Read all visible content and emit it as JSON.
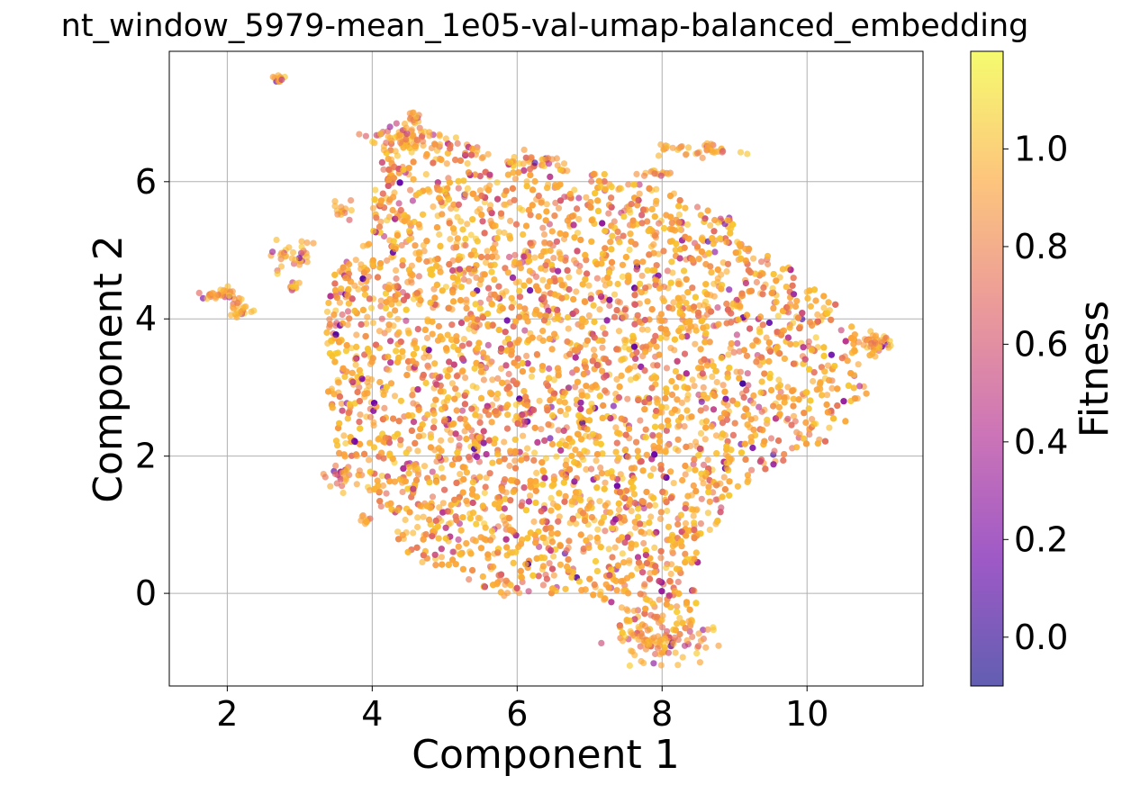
{
  "chart_data": {
    "type": "scatter",
    "title": "nt_window_5979-mean_1e05-val-umap-balanced_embedding",
    "xlabel": "Component 1",
    "ylabel": "Component 2",
    "xlim": [
      1.2,
      11.6
    ],
    "ylim": [
      -1.35,
      7.9
    ],
    "x_ticks": [
      2,
      4,
      6,
      8,
      10
    ],
    "y_ticks": [
      0,
      2,
      4,
      6
    ],
    "x_tick_labels": [
      "2",
      "4",
      "6",
      "8",
      "10"
    ],
    "y_tick_labels": [
      "0",
      "2",
      "4",
      "6"
    ],
    "grid": true,
    "colormap": "plasma",
    "marker_alpha": 0.65,
    "colorbar": {
      "label": "Fitness",
      "range": [
        -0.1,
        1.2
      ],
      "ticks": [
        0.0,
        0.2,
        0.4,
        0.6,
        0.8,
        1.0
      ],
      "tick_labels": [
        "0.0",
        "0.2",
        "0.4",
        "0.6",
        "0.8",
        "1.0"
      ],
      "stops": [
        "#0d0887",
        "#6a00a8",
        "#b12a90",
        "#e16462",
        "#fca636",
        "#f0f921"
      ]
    },
    "main_cloud": {
      "note_point_count": 6000,
      "boundary": [
        [
          3.3,
          3.2
        ],
        [
          3.4,
          4.6
        ],
        [
          3.9,
          5.1
        ],
        [
          4.1,
          6.2
        ],
        [
          4.3,
          6.75
        ],
        [
          5.3,
          6.55
        ],
        [
          6.2,
          6.25
        ],
        [
          7.3,
          6.1
        ],
        [
          8.0,
          5.9
        ],
        [
          8.9,
          5.5
        ],
        [
          9.3,
          5.1
        ],
        [
          10.0,
          4.6
        ],
        [
          10.6,
          4.0
        ],
        [
          11.1,
          3.7
        ],
        [
          10.9,
          3.0
        ],
        [
          10.3,
          2.2
        ],
        [
          9.4,
          1.8
        ],
        [
          9.0,
          1.4
        ],
        [
          8.5,
          0.6
        ],
        [
          8.5,
          0.0
        ],
        [
          8.4,
          -0.6
        ],
        [
          8.0,
          -0.9
        ],
        [
          7.3,
          -0.5
        ],
        [
          7.0,
          0.0
        ],
        [
          6.3,
          0.0
        ],
        [
          5.7,
          -0.1
        ],
        [
          5.2,
          0.3
        ],
        [
          4.5,
          0.5
        ],
        [
          3.9,
          1.5
        ],
        [
          3.5,
          1.8
        ],
        [
          3.5,
          2.5
        ],
        [
          3.3,
          3.2
        ]
      ]
    },
    "clusters": [
      {
        "x": 2.72,
        "y": 7.5,
        "sx": 0.03,
        "sy": 0.03,
        "n": 14
      },
      {
        "x": 1.9,
        "y": 4.35,
        "sx": 0.12,
        "sy": 0.05,
        "n": 30
      },
      {
        "x": 2.2,
        "y": 4.12,
        "sx": 0.08,
        "sy": 0.07,
        "n": 25
      },
      {
        "x": 2.9,
        "y": 4.9,
        "sx": 0.15,
        "sy": 0.12,
        "n": 35
      },
      {
        "x": 2.9,
        "y": 4.45,
        "sx": 0.05,
        "sy": 0.05,
        "n": 10
      },
      {
        "x": 3.9,
        "y": 1.08,
        "sx": 0.03,
        "sy": 0.04,
        "n": 10
      },
      {
        "x": 4.5,
        "y": 6.65,
        "sx": 0.25,
        "sy": 0.08,
        "n": 60
      },
      {
        "x": 4.55,
        "y": 6.95,
        "sx": 0.06,
        "sy": 0.06,
        "n": 15
      },
      {
        "x": 6.2,
        "y": 6.3,
        "sx": 0.25,
        "sy": 0.05,
        "n": 30
      },
      {
        "x": 8.5,
        "y": 6.45,
        "sx": 0.3,
        "sy": 0.07,
        "n": 40
      },
      {
        "x": 7.9,
        "y": 6.12,
        "sx": 0.1,
        "sy": 0.03,
        "n": 15
      },
      {
        "x": 3.6,
        "y": 5.6,
        "sx": 0.1,
        "sy": 0.1,
        "n": 15
      },
      {
        "x": 8.0,
        "y": -0.7,
        "sx": 0.3,
        "sy": 0.15,
        "n": 80
      },
      {
        "x": 3.55,
        "y": 1.7,
        "sx": 0.1,
        "sy": 0.1,
        "n": 20
      },
      {
        "x": 11.0,
        "y": 3.65,
        "sx": 0.12,
        "sy": 0.06,
        "n": 25
      }
    ]
  }
}
